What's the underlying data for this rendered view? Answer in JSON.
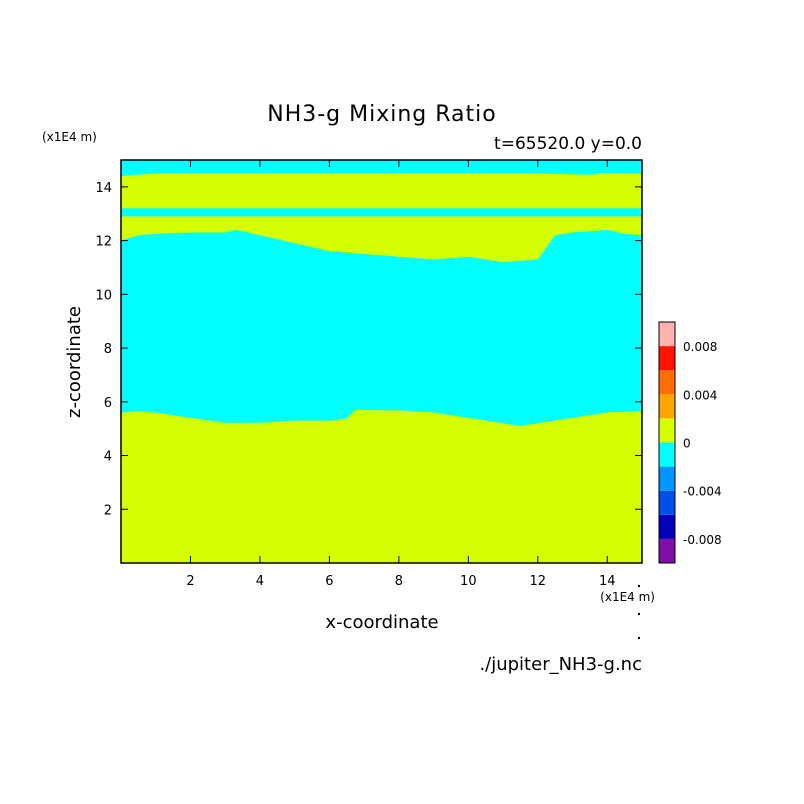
{
  "chart_data": {
    "type": "heatmap",
    "title": "NH3-g Mixing Ratio",
    "subtitle": "t=65520.0 y=0.0",
    "xlabel": "x-coordinate",
    "ylabel": "z-coordinate",
    "x_unit": "(x1E4 m)",
    "y_unit": "(x1E4 m)",
    "source_file": "./jupiter_NH3-g.nc",
    "xlim": [
      0,
      15
    ],
    "ylim": [
      0,
      15
    ],
    "x_ticks": [
      2,
      4,
      6,
      8,
      10,
      12,
      14
    ],
    "y_ticks": [
      2,
      4,
      6,
      8,
      10,
      12,
      14
    ],
    "colorbar": {
      "levels": [
        -0.01,
        -0.008,
        -0.006,
        -0.004,
        -0.002,
        0,
        0.002,
        0.004,
        0.006,
        0.008,
        0.01
      ],
      "colors": [
        "#7f0fa8",
        "#0000b8",
        "#0050e6",
        "#0096ff",
        "#00ffff",
        "#d4ff00",
        "#ffa500",
        "#ff6e00",
        "#ff1400",
        "#ffb2b2"
      ],
      "tick_labels": [
        {
          "value": 0.008,
          "label": "0.008"
        },
        {
          "value": 0.004,
          "label": "0.004"
        },
        {
          "value": 0,
          "label": "0"
        },
        {
          "value": -0.004,
          "label": "-0.004"
        },
        {
          "value": -0.008,
          "label": "-0.008"
        }
      ]
    },
    "regions": [
      {
        "level": "0 to 0.002",
        "color": "#d4ff00",
        "description": "lower layer",
        "boundary": [
          [
            0,
            5.6
          ],
          [
            0.5,
            5.65
          ],
          [
            1,
            5.6
          ],
          [
            2,
            5.4
          ],
          [
            3,
            5.22
          ],
          [
            4,
            5.22
          ],
          [
            5,
            5.3
          ],
          [
            6,
            5.3
          ],
          [
            6.5,
            5.38
          ],
          [
            6.75,
            5.7
          ],
          [
            8,
            5.68
          ],
          [
            9,
            5.6
          ],
          [
            10,
            5.4
          ],
          [
            11,
            5.2
          ],
          [
            11.5,
            5.1
          ],
          [
            12,
            5.2
          ],
          [
            13,
            5.4
          ],
          [
            14,
            5.6
          ],
          [
            15,
            5.65
          ]
        ]
      },
      {
        "level": "0 to 0.002",
        "color": "#d4ff00",
        "description": "upper band",
        "lower_edge": [
          [
            0,
            12
          ],
          [
            0.5,
            12.2
          ],
          [
            1,
            12.25
          ],
          [
            2,
            12.3
          ],
          [
            3,
            12.3
          ],
          [
            3.3,
            12.4
          ],
          [
            4,
            12.2
          ],
          [
            5,
            11.9
          ],
          [
            6,
            11.6
          ],
          [
            7,
            11.5
          ],
          [
            8,
            11.4
          ],
          [
            9,
            11.3
          ],
          [
            10,
            11.4
          ],
          [
            11,
            11.2
          ],
          [
            12,
            11.3
          ],
          [
            12.5,
            12.2
          ],
          [
            13,
            12.3
          ],
          [
            14,
            12.4
          ],
          [
            14.5,
            12.25
          ],
          [
            15,
            12.2
          ]
        ],
        "upper_edge": [
          [
            0,
            14.4
          ],
          [
            1,
            14.5
          ],
          [
            2,
            14.6
          ],
          [
            4,
            14.55
          ],
          [
            6,
            14.55
          ],
          [
            8,
            14.5
          ],
          [
            10,
            14.55
          ],
          [
            12,
            14.5
          ],
          [
            13.5,
            14.45
          ],
          [
            14.5,
            14.6
          ],
          [
            15,
            14.8
          ]
        ]
      },
      {
        "level": "-0.002 to 0",
        "color": "#00ffff",
        "description": "thin strip in upper band",
        "z_range": [
          12.9,
          13.2
        ]
      },
      {
        "level": "-0.002 to 0",
        "color": "#00ffff",
        "description": "middle layer",
        "z_range": [
          5.5,
          12.2
        ]
      },
      {
        "level": "-0.002 to 0",
        "color": "#00ffff",
        "description": "top strip",
        "z_range": [
          14.5,
          15
        ]
      }
    ]
  }
}
